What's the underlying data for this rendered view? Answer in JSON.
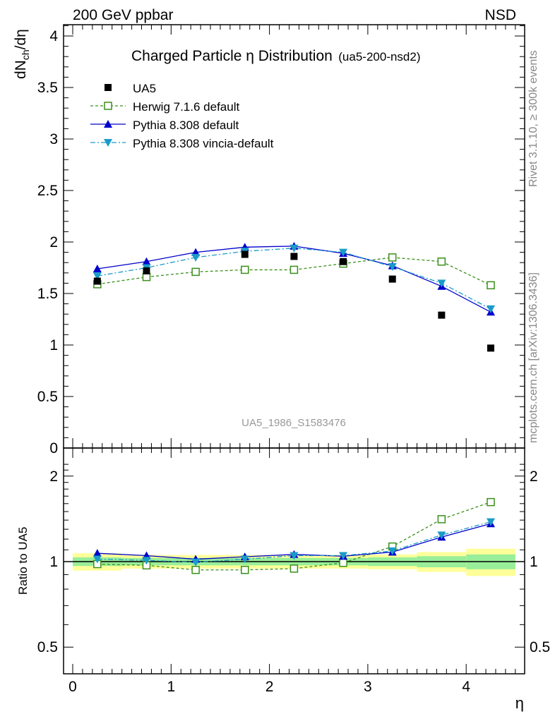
{
  "header": {
    "left": "200 GeV ppbar",
    "right": "NSD"
  },
  "side_text": {
    "rivet": "Rivet 3.1.10, ≥ 300k events",
    "mcplots": "mcplots.cern.ch [arXiv:1306.3436]"
  },
  "chart_data": {
    "type": "line",
    "title_main": "Charged Particle η Distribution",
    "title_sub": "(ua5-200-nsd2)",
    "watermark": "UA5_1986_S1583476",
    "x_axis": {
      "label": "η",
      "range": [
        -0.1,
        4.5
      ],
      "ticks": [
        "0",
        "1",
        "2",
        "3",
        "4"
      ]
    },
    "top_panel": {
      "ylabel": "dN_ch/dη",
      "ylim": [
        0,
        4.1
      ],
      "yticks": [
        "0",
        "0.5",
        "1",
        "1.5",
        "2",
        "2.5",
        "3",
        "3.5",
        "4"
      ]
    },
    "ratio_panel": {
      "ylabel": "Ratio to UA5",
      "ytick_labels": [
        "0.5",
        "1",
        "2"
      ]
    },
    "x": [
      0.25,
      0.75,
      1.25,
      1.75,
      2.25,
      2.75,
      3.25,
      3.75,
      4.25
    ],
    "series": [
      {
        "name": "UA5",
        "color": "#000000",
        "marker": "square",
        "values": [
          1.62,
          1.72,
          null,
          1.88,
          1.86,
          1.81,
          1.64,
          1.29,
          0.97
        ]
      },
      {
        "name": "Herwig 7.1.6 default",
        "color": "#3a8f1a",
        "marker": "open-square",
        "dash": "dashed",
        "values": [
          1.59,
          1.66,
          1.71,
          1.73,
          1.73,
          1.79,
          1.85,
          1.81,
          1.58
        ],
        "ratio": [
          0.98,
          0.97,
          0.935,
          0.935,
          0.945,
          0.99,
          1.13,
          1.41,
          1.62
        ]
      },
      {
        "name": "Pythia 8.308 default",
        "color": "#0000cc",
        "marker": "triangle-up",
        "dash": "solid",
        "values": [
          1.74,
          1.81,
          1.9,
          1.95,
          1.96,
          1.89,
          1.77,
          1.57,
          1.32
        ],
        "ratio": [
          1.07,
          1.05,
          1.02,
          1.04,
          1.06,
          1.045,
          1.08,
          1.22,
          1.36
        ]
      },
      {
        "name": "Pythia 8.308 vincia-default",
        "color": "#1a9bc8",
        "marker": "triangle-down",
        "dash": "dashdot",
        "values": [
          1.67,
          1.75,
          1.85,
          1.91,
          1.94,
          1.9,
          1.76,
          1.6,
          1.35
        ],
        "ratio": [
          1.02,
          1.01,
          0.995,
          1.02,
          1.05,
          1.05,
          1.09,
          1.24,
          1.38
        ]
      }
    ],
    "ratio_bands": {
      "edges": [
        0.0,
        0.5,
        1.0,
        1.5,
        2.0,
        2.5,
        3.0,
        3.5,
        4.0,
        4.5
      ],
      "green_halfwidth": [
        0.035,
        0.03,
        0.03,
        0.03,
        0.03,
        0.03,
        0.035,
        0.045,
        0.06
      ],
      "yellow_halfwidth": [
        0.07,
        0.055,
        0.055,
        0.055,
        0.055,
        0.055,
        0.06,
        0.08,
        0.11
      ]
    }
  }
}
